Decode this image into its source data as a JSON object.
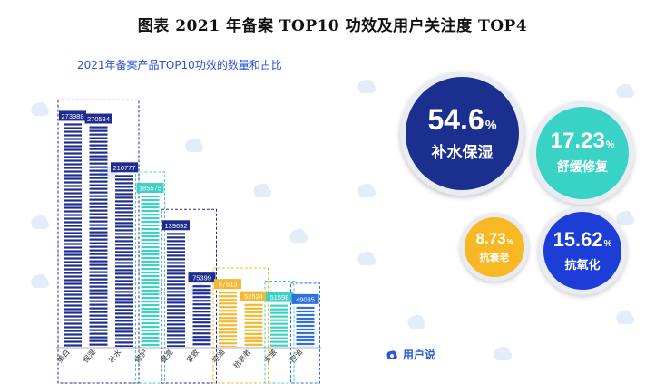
{
  "title": "图表 2021 年备案 TOP10 功效及用户关注度 TOP4",
  "brand": {
    "name": "用户说",
    "icon": "cloud-logo-icon"
  },
  "chart_data": {
    "type": "bar",
    "title": "2021年备案产品TOP10功效的数量和占比",
    "categories": [
      "美白",
      "保湿",
      "补水",
      "修护",
      "提亮",
      "紧致",
      "控油",
      "抗衰老",
      "去皱",
      "控油"
    ],
    "values": [
      273988,
      270534,
      210777,
      185575,
      139692,
      75399,
      67613,
      52524,
      51598,
      49035
    ],
    "groups": [
      {
        "color": "#1f2d8f",
        "members": [
          0,
          1,
          2
        ]
      },
      {
        "color": "#3fd1c4",
        "members": [
          3
        ]
      },
      {
        "color": "#1f2d8f",
        "members": [
          4,
          5
        ]
      },
      {
        "color": "#f5b82e",
        "members": [
          6,
          7
        ]
      },
      {
        "color": "#3fd1c4",
        "members": [
          8
        ]
      },
      {
        "color": "#2f6fe0",
        "members": [
          9
        ]
      }
    ],
    "ylim": [
      0,
      290000
    ]
  },
  "bubbles": [
    {
      "pct": "54.6",
      "label": "补水保湿",
      "color": "#1a2f8e"
    },
    {
      "pct": "17.23",
      "label": "舒缓修复",
      "color": "#38d3c5"
    },
    {
      "pct": "8.73",
      "label": "抗衰老",
      "color": "#f7b824"
    },
    {
      "pct": "15.62",
      "label": "抗氧化",
      "color": "#1d3ed6"
    }
  ]
}
